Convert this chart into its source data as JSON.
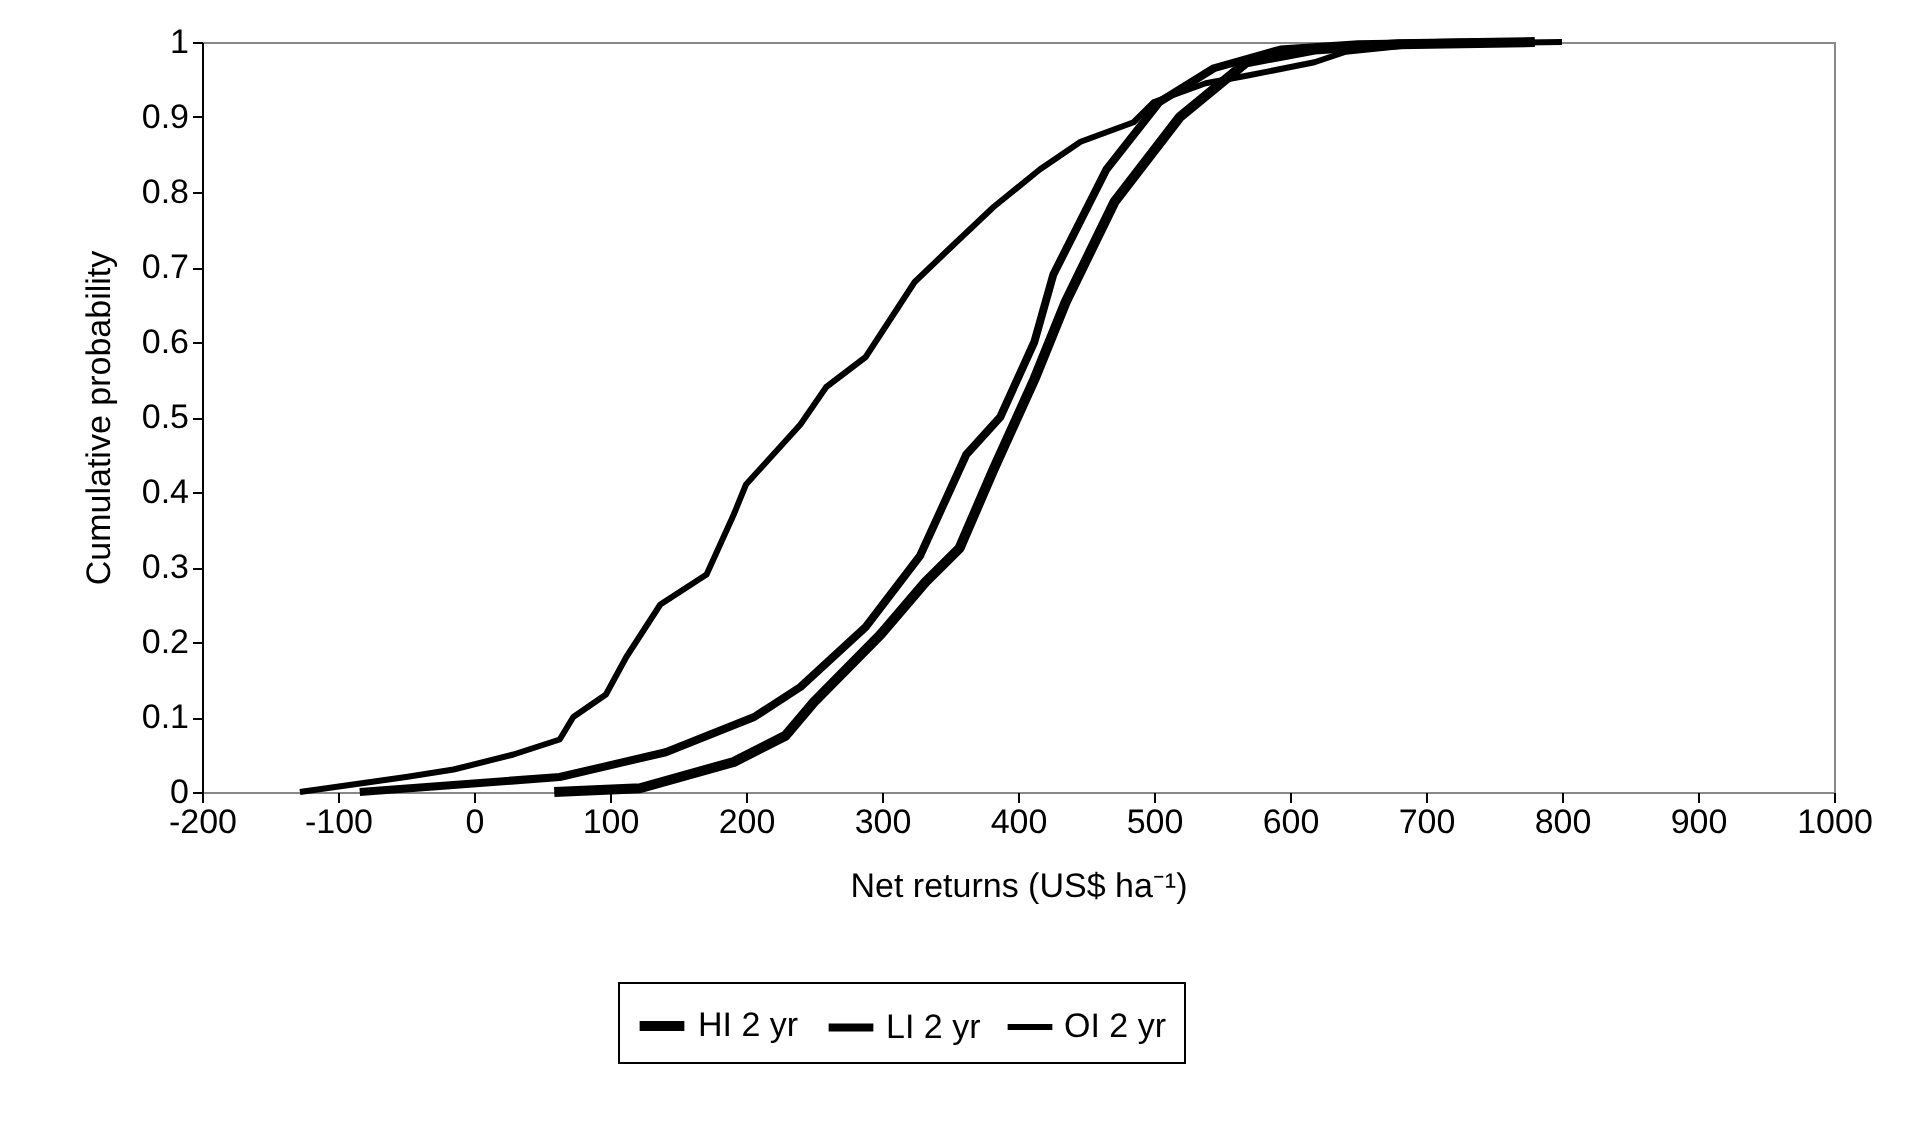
{
  "chart_data": {
    "type": "line",
    "xlabel": "Net returns (US$ ha⁻¹)",
    "ylabel": "Cumulative probability",
    "series": [
      {
        "name": "HI 2 yr",
        "color": "#000000",
        "x": [
          59,
          122,
          191,
          229,
          250,
          299,
          332,
          357,
          382,
          412,
          435,
          471,
          519,
          568,
          618,
          680,
          780
        ],
        "values": [
          0,
          0.005,
          0.04,
          0.075,
          0.12,
          0.21,
          0.28,
          0.325,
          0.43,
          0.55,
          0.653,
          0.787,
          0.9,
          0.973,
          0.99,
          0.997,
          1
        ]
      },
      {
        "name": "LI 2 yr",
        "color": "#000000",
        "x": [
          -84,
          63,
          141,
          206,
          240,
          288,
          328,
          362,
          387,
          412,
          426,
          465,
          504,
          544,
          593,
          650,
          750
        ],
        "values": [
          0,
          0.02,
          0.053,
          0.1,
          0.14,
          0.22,
          0.315,
          0.45,
          0.5,
          0.6,
          0.69,
          0.83,
          0.92,
          0.965,
          0.99,
          0.997,
          1
        ]
      },
      {
        "name": "OI 2 yr",
        "color": "#000000",
        "x": [
          -128,
          -50,
          -15,
          29,
          63,
          73,
          97,
          112,
          137,
          171,
          191,
          200,
          240,
          259,
          288,
          324,
          347,
          382,
          416,
          446,
          485,
          500,
          538,
          568,
          618,
          641,
          700,
          800
        ],
        "values": [
          0,
          0.02,
          0.03,
          0.05,
          0.07,
          0.1,
          0.13,
          0.18,
          0.25,
          0.29,
          0.37,
          0.41,
          0.49,
          0.54,
          0.58,
          0.68,
          0.72,
          0.78,
          0.83,
          0.867,
          0.893,
          0.92,
          0.945,
          0.955,
          0.973,
          0.987,
          0.998,
          1
        ]
      }
    ],
    "xlim": [
      -200,
      1000
    ],
    "xticks": [
      -200,
      -100,
      0,
      100,
      200,
      300,
      400,
      500,
      600,
      700,
      800,
      900,
      1000
    ],
    "ylim": [
      0,
      1
    ],
    "yticks": [
      0,
      0.1,
      0.2,
      0.3,
      0.4,
      0.5,
      0.6,
      0.7,
      0.8,
      0.9,
      1
    ],
    "grid": false,
    "legend": "bottom",
    "marker": "none",
    "line_style": "solid"
  }
}
